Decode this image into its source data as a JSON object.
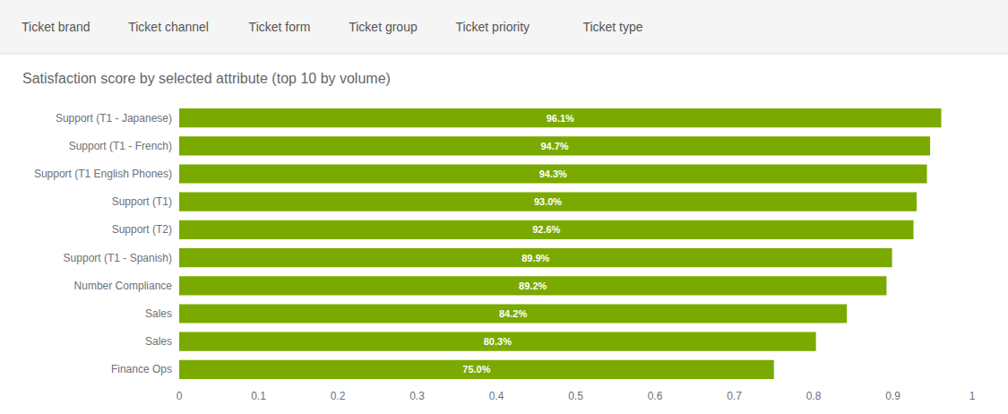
{
  "chart_data": {
    "type": "bar",
    "orientation": "horizontal",
    "title": "Satisfaction score by selected attribute (top 10 by volume)",
    "annotations": [
      "Ticket brand",
      "Ticket channel",
      "Ticket form",
      "Ticket group",
      "Ticket priority",
      "Ticket type"
    ],
    "categories": [
      "Support (T1 - Japanese)",
      "Support (T1 - French)",
      "Support (T1 English Phones)",
      "Support (T1)",
      "Support (T2)",
      "Support (T1 - Spanish)",
      "Number Compliance",
      "Sales",
      "Sales",
      "Finance Ops"
    ],
    "values": [
      0.961,
      0.947,
      0.943,
      0.93,
      0.926,
      0.899,
      0.892,
      0.842,
      0.803,
      0.75
    ],
    "value_labels": [
      "96.1%",
      "94.7%",
      "94.3%",
      "93.0%",
      "92.6%",
      "89.9%",
      "89.2%",
      "84.2%",
      "80.3%",
      "75.0%"
    ],
    "data_labels": true,
    "color": "#7aaa00",
    "xlim": [
      0,
      1
    ],
    "xticks": [
      0,
      0.1,
      0.2,
      0.3,
      0.4,
      0.5,
      0.6,
      0.7,
      0.8,
      0.9,
      1
    ],
    "grid": false
  }
}
